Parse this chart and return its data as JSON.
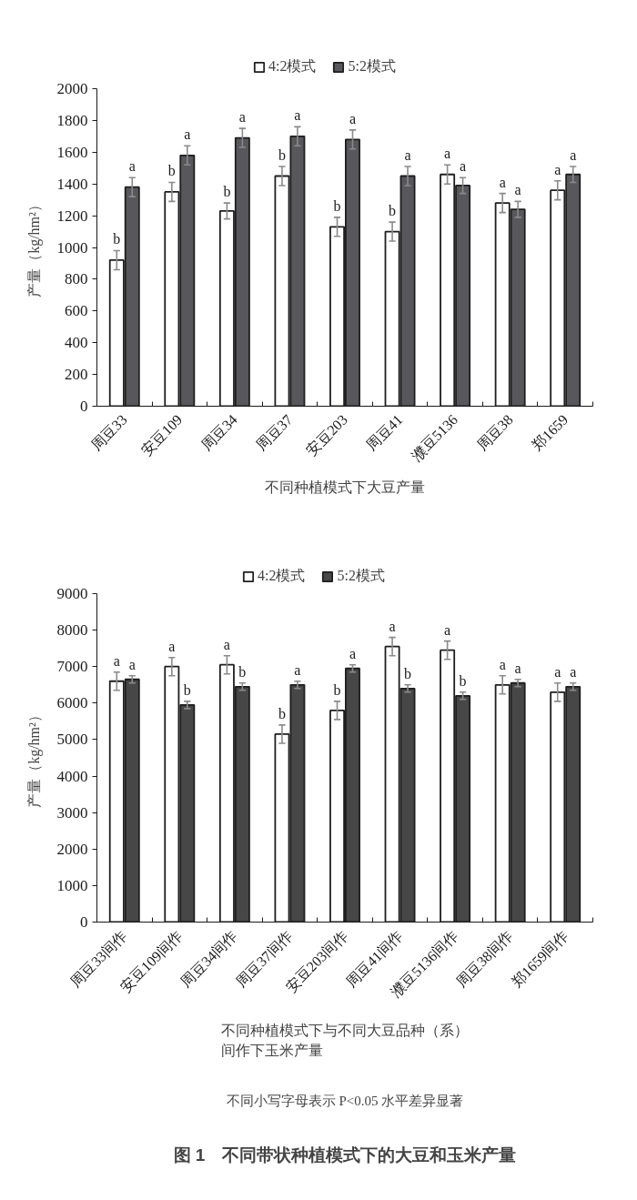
{
  "chart_data": [
    {
      "type": "bar",
      "xlabel": "不同种植模式下大豆产量",
      "ylabel": "产量（kg/hm²）",
      "categories": [
        "周豆33",
        "安豆109",
        "周豆34",
        "周豆37",
        "安豆203",
        "周豆41",
        "濮豆5136",
        "周豆38",
        "郑1659"
      ],
      "series": [
        {
          "name": "4:2模式",
          "color": "#ffffff",
          "values": [
            920,
            1350,
            1230,
            1450,
            1130,
            1100,
            1460,
            1280,
            1360
          ],
          "errors": [
            60,
            60,
            50,
            60,
            60,
            60,
            60,
            60,
            60
          ],
          "value_labels": [
            "b",
            "b",
            "b",
            "b",
            "b",
            "b",
            "a",
            "a",
            "a"
          ]
        },
        {
          "name": "5:2模式",
          "color": "#58585c",
          "values": [
            1380,
            1580,
            1690,
            1700,
            1680,
            1450,
            1390,
            1240,
            1460
          ],
          "errors": [
            60,
            60,
            60,
            60,
            60,
            60,
            50,
            50,
            50
          ],
          "value_labels": [
            "a",
            "a",
            "a",
            "a",
            "a",
            "a",
            "a",
            "a",
            "a"
          ]
        }
      ],
      "ylim": [
        0,
        2000
      ],
      "yticks": [
        0,
        200,
        400,
        600,
        800,
        1000,
        1200,
        1400,
        1600,
        1800,
        2000
      ],
      "legend": "top"
    },
    {
      "type": "bar",
      "title": "图 1　不同带状种植模式下的大豆和玉米产量",
      "xlabel": "不同种植模式下与不同大豆品种（系）间作下玉米产量",
      "ylabel": "产量（kg/hm²）",
      "categories": [
        "周豆33间作",
        "安豆109间作",
        "周豆34间作",
        "周豆37间作",
        "安豆203间作",
        "周豆41间作",
        "濮豆5136间作",
        "周豆38间作",
        "郑1659间作"
      ],
      "series": [
        {
          "name": "4:2模式",
          "color": "#ffffff",
          "values": [
            6600,
            7000,
            7050,
            5150,
            5800,
            7550,
            7450,
            6500,
            6300
          ],
          "errors": [
            250,
            250,
            250,
            250,
            250,
            250,
            250,
            250,
            250
          ],
          "value_labels": [
            "a",
            "a",
            "a",
            "b",
            "b",
            "a",
            "a",
            "a",
            "a"
          ]
        },
        {
          "name": "5:2模式",
          "color": "#474747",
          "values": [
            6650,
            5950,
            6450,
            6500,
            6950,
            6400,
            6200,
            6550,
            6450
          ],
          "errors": [
            100,
            100,
            100,
            100,
            100,
            100,
            100,
            100,
            100
          ],
          "value_labels": [
            "a",
            "b",
            "b",
            "a",
            "a",
            "b",
            "b",
            "a",
            "a"
          ]
        }
      ],
      "ylim": [
        0,
        9000
      ],
      "yticks": [
        0,
        1000,
        2000,
        3000,
        4000,
        5000,
        6000,
        7000,
        8000,
        9000
      ],
      "legend": "top",
      "annotations": [
        "不同小写字母表示 P<0.05 水平差异显著"
      ]
    }
  ]
}
